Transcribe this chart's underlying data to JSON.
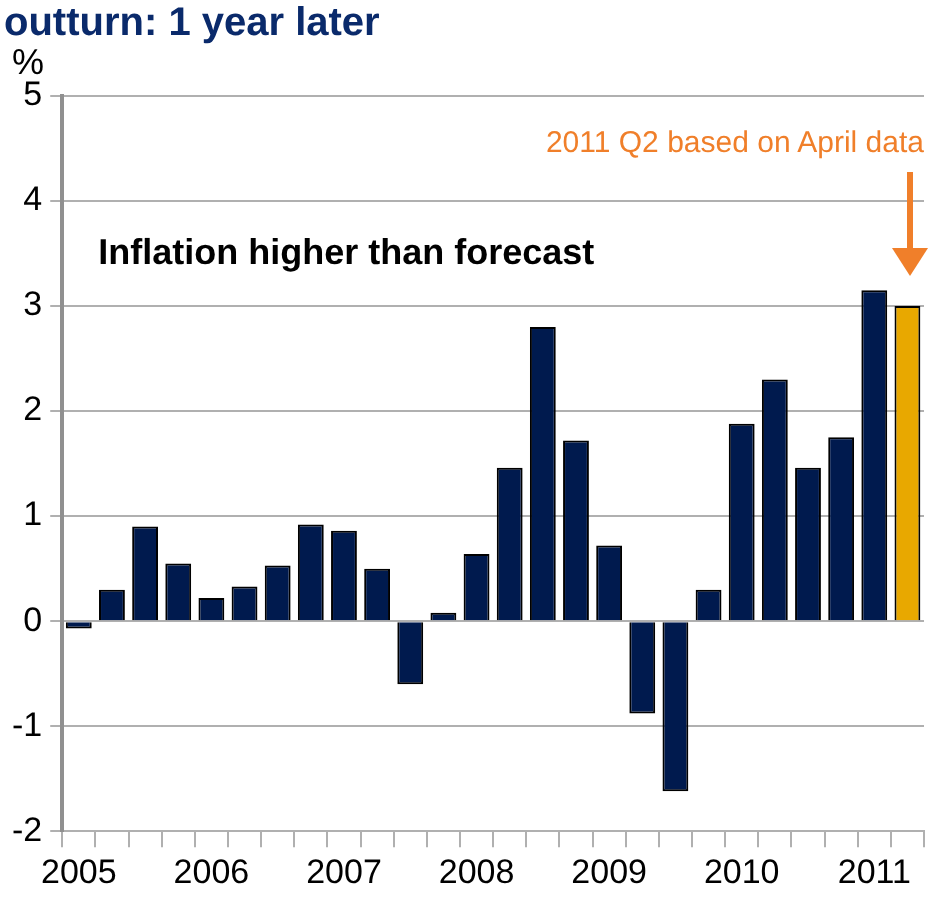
{
  "chart_data": {
    "type": "bar",
    "title": "outturn: 1 year later",
    "ylabel": "%",
    "categories": [
      "2005",
      null,
      null,
      null,
      "2006",
      null,
      null,
      null,
      "2007",
      null,
      null,
      null,
      "2008",
      null,
      null,
      null,
      "2009",
      null,
      null,
      null,
      "2010",
      null,
      null,
      null,
      "2011",
      null
    ],
    "values": [
      -0.07,
      0.3,
      0.9,
      0.55,
      0.22,
      0.33,
      0.53,
      0.92,
      0.86,
      0.5,
      -0.6,
      0.08,
      0.64,
      1.46,
      2.8,
      1.72,
      0.72,
      -0.88,
      -1.62,
      0.3,
      1.88,
      2.3,
      1.46,
      1.75,
      3.15,
      3.0
    ],
    "colors": [
      "#001a4e",
      "#001a4e",
      "#001a4e",
      "#001a4e",
      "#001a4e",
      "#001a4e",
      "#001a4e",
      "#001a4e",
      "#001a4e",
      "#001a4e",
      "#001a4e",
      "#001a4e",
      "#001a4e",
      "#001a4e",
      "#001a4e",
      "#001a4e",
      "#001a4e",
      "#001a4e",
      "#001a4e",
      "#001a4e",
      "#001a4e",
      "#001a4e",
      "#001a4e",
      "#001a4e",
      "#001a4e",
      "#e8a800"
    ],
    "ylim": [
      -2,
      5
    ],
    "yticks": [
      -2,
      -1,
      0,
      1,
      2,
      3,
      4,
      5
    ],
    "grid": "y",
    "legend": false,
    "annotations": [
      "2011 Q2 based on April data",
      "Inflation higher than forecast"
    ]
  }
}
